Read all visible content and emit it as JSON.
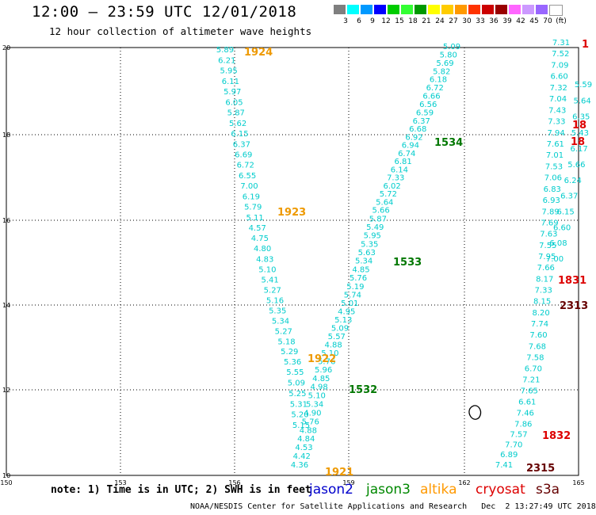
{
  "header": {
    "title": "12:00 – 23:59 UTC 12/01/2018",
    "subtitle": "12 hour collection of altimeter wave heights"
  },
  "colorbar": {
    "colors": [
      "#7f7f7f",
      "#00ffff",
      "#0099ff",
      "#0000ff",
      "#00cc00",
      "#33ff33",
      "#009900",
      "#ffff00",
      "#ffcc00",
      "#ff9900",
      "#ff3300",
      "#cc0000",
      "#990000",
      "#ff66ff",
      "#cc99ff",
      "#9966ff",
      "#ffffff"
    ],
    "labels": [
      "3",
      "6",
      "9",
      "12",
      "15",
      "18",
      "21",
      "24",
      "27",
      "30",
      "33",
      "36",
      "39",
      "42",
      "45",
      "70",
      "(ft)"
    ]
  },
  "axes": {
    "lon_ticks": [
      "150",
      "153",
      "156",
      "159",
      "162",
      "165"
    ],
    "lat_ticks": [
      "10",
      "12",
      "14",
      "16",
      "18",
      "20"
    ]
  },
  "tracks": [
    {
      "color": "#00cccc",
      "values": [
        "5.89",
        "6.21",
        "5.95",
        "6.11",
        "5.97",
        "6.05",
        "5.87",
        "5.62",
        "6.15",
        "6.37",
        "6.69",
        "6.72",
        "6.55",
        "7.00",
        "6.19",
        "5.79",
        "5.11",
        "4.57",
        "4.75",
        "4.80",
        "4.83",
        "5.10",
        "5.41",
        "5.27",
        "5.16",
        "5.35",
        "5.34",
        "5.27",
        "5.18",
        "5.29",
        "5.36",
        "5.55",
        "5.09",
        "5.25",
        "5.31",
        "5.20",
        "5.15"
      ]
    },
    {
      "color": "#00cccc",
      "values": [
        "5.09",
        "5.80",
        "5.69",
        "5.82",
        "6.18",
        "6.72",
        "6.66",
        "6.56",
        "6.59",
        "6.37",
        "6.68",
        "6.92",
        "6.94",
        "6.74",
        "6.81",
        "6.14",
        "7.33",
        "6.02",
        "5.72",
        "5.64",
        "5.66",
        "5.87",
        "5.49",
        "5.95",
        "5.35",
        "5.63",
        "5.34",
        "4.85",
        "5.76",
        "5.19",
        "5.74",
        "5.01",
        "4.95",
        "5.13",
        "5.09",
        "5.57",
        "4.88",
        "5.10",
        "5.76",
        "5.96",
        "4.85",
        "4.98",
        "5.10",
        "5.34",
        "4.90",
        "5.76",
        "4.88",
        "4.84",
        "4.53",
        "4.42",
        "4.36"
      ]
    },
    {
      "color": "#00cccc",
      "values": [
        "7.31",
        "7.52",
        "7.09",
        "6.60",
        "7.32",
        "7.04",
        "7.43",
        "7.33",
        "7.94",
        "7.61",
        "7.01",
        "7.53",
        "7.06",
        "6.83",
        "6.93",
        "7.89",
        "7.69",
        "7.63",
        "7.55",
        "7.95",
        "7.66",
        "8.17",
        "7.33",
        "8.15",
        "8.20",
        "7.74",
        "7.60",
        "7.68",
        "7.58",
        "6.70",
        "7.21",
        "7.65",
        "6.61",
        "7.46",
        "7.86",
        "7.57",
        "7.70",
        "6.89",
        "7.41"
      ]
    },
    {
      "color": "#00cccc",
      "values": [
        "5.59",
        "5.64",
        "6.35",
        "5.43",
        "6.17",
        "5.66",
        "6.24",
        "6.37",
        "6.15",
        "6.60",
        "6.08",
        "7.00"
      ]
    }
  ],
  "pass_labels": [
    {
      "text": "1924",
      "color": "#ee9900"
    },
    {
      "text": "1923",
      "color": "#ee9900"
    },
    {
      "text": "1922",
      "color": "#ee9900"
    },
    {
      "text": "1921",
      "color": "#ee9900"
    },
    {
      "text": "1534",
      "color": "#007700"
    },
    {
      "text": "1533",
      "color": "#007700"
    },
    {
      "text": "1532",
      "color": "#007700"
    },
    {
      "text": "1831",
      "color": "#dd0000"
    },
    {
      "text": "1832",
      "color": "#dd0000"
    },
    {
      "text": "2313",
      "color": "#660000"
    },
    {
      "text": "2315",
      "color": "#660000"
    },
    {
      "text": "18",
      "color": "#dd0000"
    },
    {
      "text": "18",
      "color": "#dd0000"
    },
    {
      "text": "1",
      "color": "#dd0000"
    }
  ],
  "footer": {
    "note": "note: 1) Time is in UTC; 2) SWH is in feet",
    "legend": [
      {
        "name": "jason2",
        "color": "#0000cc"
      },
      {
        "name": "jason3",
        "color": "#008800"
      },
      {
        "name": "altika",
        "color": "#ff9900"
      },
      {
        "name": "cryosat",
        "color": "#dd0000"
      },
      {
        "name": "s3a",
        "color": "#660000"
      }
    ],
    "credit": "NOAA/NESDIS Center for Satellite Applications and Research   Dec  2 13:27:49 UTC 2018"
  }
}
